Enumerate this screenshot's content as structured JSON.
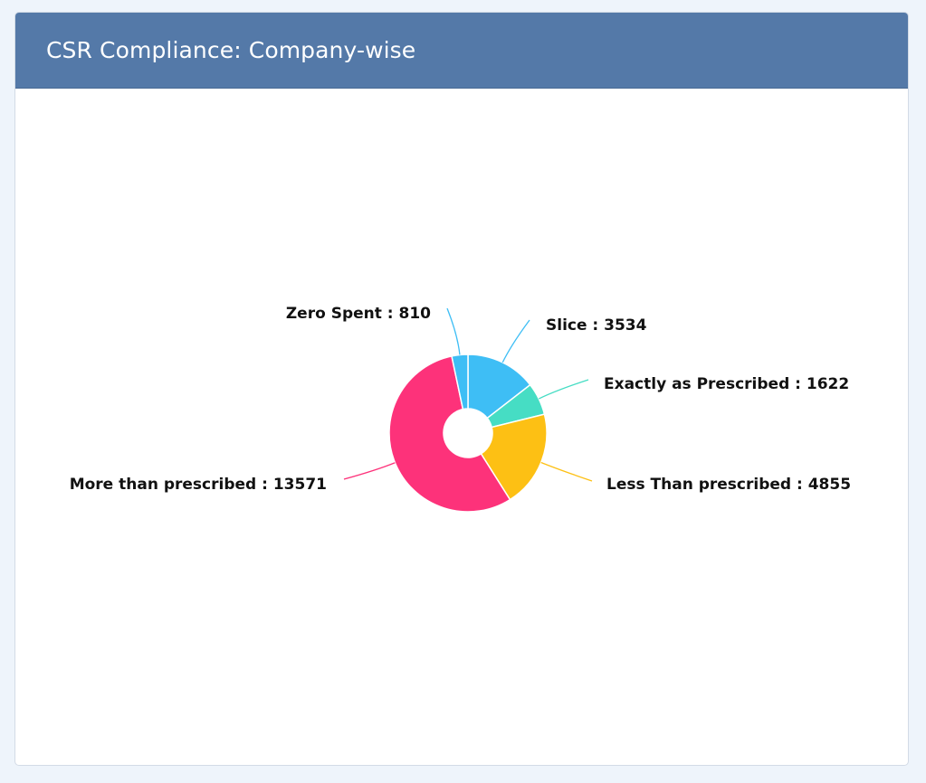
{
  "header": {
    "title": "CSR Compliance: Company-wise"
  },
  "chart_data": {
    "type": "pie",
    "donut": true,
    "title": "",
    "label_separator": " : ",
    "slices": [
      {
        "name": "Slice",
        "value": 3534,
        "color": "#3ebef5"
      },
      {
        "name": "Exactly as Prescribed",
        "value": 1622,
        "color": "#46ddc4"
      },
      {
        "name": "Less Than prescribed",
        "value": 4855,
        "color": "#fdc014"
      },
      {
        "name": "More than prescribed",
        "value": 13571,
        "color": "#fd327a"
      },
      {
        "name": "Zero Spent",
        "value": 810,
        "color": "#3ebef5"
      }
    ]
  }
}
